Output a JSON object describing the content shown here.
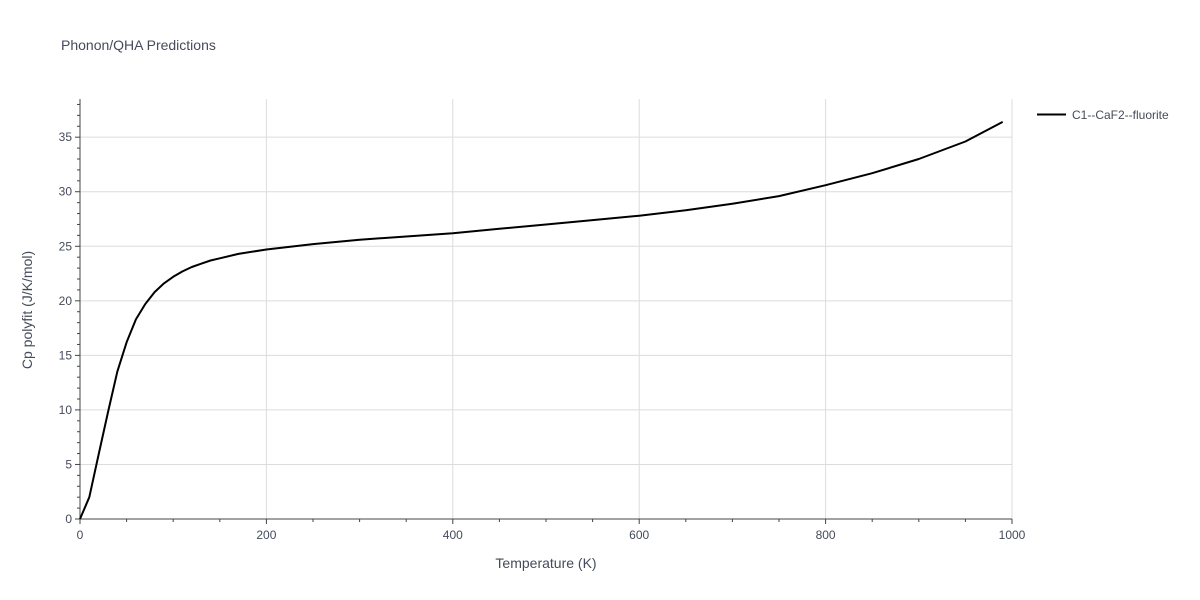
{
  "chart_data": {
    "type": "line",
    "title": "Phonon/QHA Predictions",
    "xlabel": "Temperature (K)",
    "ylabel": "Cp polyfit (J/K/mol)",
    "xlim": [
      0,
      1000
    ],
    "ylim": [
      0,
      38.5
    ],
    "xticks": [
      0,
      200,
      400,
      600,
      800,
      1000
    ],
    "yticks": [
      0,
      5,
      10,
      15,
      20,
      25,
      30,
      35
    ],
    "grid": true,
    "legend_position": "top-right",
    "series": [
      {
        "name": "C1--CaF2--fluorite",
        "color": "#000000",
        "x": [
          0,
          10,
          20,
          30,
          40,
          50,
          60,
          70,
          80,
          90,
          100,
          110,
          120,
          130,
          140,
          150,
          170,
          200,
          250,
          300,
          350,
          400,
          450,
          500,
          550,
          600,
          650,
          700,
          750,
          800,
          850,
          900,
          950,
          990
        ],
        "y": [
          0,
          2.0,
          5.9,
          9.8,
          13.5,
          16.2,
          18.3,
          19.7,
          20.8,
          21.6,
          22.2,
          22.7,
          23.1,
          23.4,
          23.7,
          23.9,
          24.3,
          24.7,
          25.2,
          25.6,
          25.9,
          26.2,
          26.6,
          27.0,
          27.4,
          27.8,
          28.3,
          28.9,
          29.6,
          30.6,
          31.7,
          33.0,
          34.6,
          36.4
        ]
      }
    ]
  }
}
